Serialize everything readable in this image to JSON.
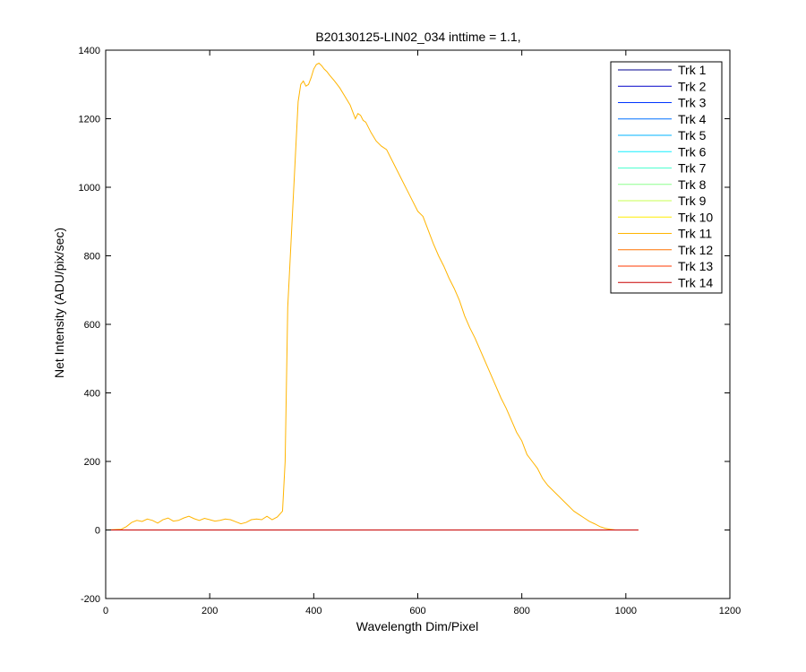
{
  "chart_data": {
    "type": "line",
    "title": "B20130125-LIN02_034 inttime = 1.1,",
    "xlabel": "Wavelength Dim/Pixel",
    "ylabel": "Net Intensity (ADU/pix/sec)",
    "xlim": [
      0,
      1200
    ],
    "ylim": [
      -200,
      1400
    ],
    "xticks": [
      0,
      200,
      400,
      600,
      800,
      1000,
      1200
    ],
    "yticks": [
      -200,
      0,
      200,
      400,
      600,
      800,
      1000,
      1200,
      1400
    ],
    "grid": false,
    "legend_position": "top-right",
    "series": [
      {
        "name": "Trk 1",
        "color": "#00008f",
        "x": [
          0,
          1024
        ],
        "y": [
          0,
          0
        ]
      },
      {
        "name": "Trk 2",
        "color": "#0000c8",
        "x": [
          0,
          1024
        ],
        "y": [
          0,
          0
        ]
      },
      {
        "name": "Trk 3",
        "color": "#0035ff",
        "x": [
          0,
          1024
        ],
        "y": [
          0,
          0
        ]
      },
      {
        "name": "Trk 4",
        "color": "#0070ff",
        "x": [
          0,
          1024
        ],
        "y": [
          0,
          0
        ]
      },
      {
        "name": "Trk 5",
        "color": "#00b4ff",
        "x": [
          0,
          1024
        ],
        "y": [
          0,
          0
        ]
      },
      {
        "name": "Trk 6",
        "color": "#15efff",
        "x": [
          0,
          1024
        ],
        "y": [
          0,
          0
        ]
      },
      {
        "name": "Trk 7",
        "color": "#4fffd0",
        "x": [
          0,
          1024
        ],
        "y": [
          0,
          0
        ]
      },
      {
        "name": "Trk 8",
        "color": "#8dff8d",
        "x": [
          0,
          1024
        ],
        "y": [
          0,
          0
        ]
      },
      {
        "name": "Trk 9",
        "color": "#c8ff50",
        "x": [
          0,
          1024
        ],
        "y": [
          0,
          0
        ]
      },
      {
        "name": "Trk 10",
        "color": "#ffee00",
        "x": [
          0,
          1024
        ],
        "y": [
          0,
          0
        ]
      },
      {
        "name": "Trk 11",
        "color": "#ffb400",
        "x": [
          0,
          30,
          40,
          50,
          60,
          70,
          80,
          90,
          100,
          110,
          120,
          130,
          140,
          150,
          160,
          170,
          180,
          190,
          200,
          210,
          220,
          230,
          240,
          250,
          260,
          270,
          280,
          290,
          300,
          310,
          320,
          330,
          340,
          345,
          350,
          355,
          360,
          365,
          370,
          375,
          380,
          385,
          390,
          395,
          400,
          405,
          410,
          415,
          420,
          425,
          430,
          440,
          450,
          460,
          470,
          480,
          485,
          490,
          495,
          500,
          510,
          520,
          530,
          540,
          550,
          560,
          570,
          580,
          590,
          600,
          610,
          620,
          630,
          640,
          650,
          660,
          670,
          680,
          690,
          700,
          710,
          720,
          730,
          740,
          750,
          760,
          770,
          780,
          790,
          800,
          810,
          820,
          830,
          840,
          850,
          860,
          870,
          880,
          890,
          900,
          910,
          920,
          930,
          940,
          950,
          960,
          970,
          980,
          990,
          1000,
          1010,
          1020,
          1024
        ],
        "y": [
          0,
          2,
          10,
          22,
          28,
          25,
          32,
          28,
          20,
          30,
          35,
          26,
          28,
          35,
          40,
          33,
          28,
          34,
          30,
          26,
          28,
          32,
          30,
          24,
          18,
          22,
          30,
          32,
          30,
          40,
          30,
          38,
          55,
          200,
          650,
          800,
          950,
          1100,
          1250,
          1300,
          1310,
          1295,
          1300,
          1320,
          1345,
          1358,
          1362,
          1355,
          1345,
          1338,
          1328,
          1310,
          1290,
          1265,
          1240,
          1200,
          1215,
          1210,
          1195,
          1190,
          1160,
          1135,
          1120,
          1110,
          1080,
          1050,
          1020,
          990,
          960,
          930,
          915,
          875,
          835,
          800,
          770,
          735,
          705,
          670,
          625,
          590,
          560,
          525,
          490,
          455,
          420,
          385,
          355,
          320,
          285,
          260,
          220,
          200,
          180,
          150,
          130,
          115,
          100,
          85,
          70,
          55,
          45,
          35,
          25,
          18,
          10,
          5,
          2,
          0,
          0,
          0,
          0,
          0,
          0
        ]
      },
      {
        "name": "Trk 12",
        "color": "#ff7300",
        "x": [
          0,
          1024
        ],
        "y": [
          0,
          0
        ]
      },
      {
        "name": "Trk 13",
        "color": "#ff3a00",
        "x": [
          0,
          1024
        ],
        "y": [
          0,
          0
        ]
      },
      {
        "name": "Trk 14",
        "color": "#c80000",
        "x": [
          0,
          1024
        ],
        "y": [
          0,
          0
        ]
      }
    ]
  }
}
